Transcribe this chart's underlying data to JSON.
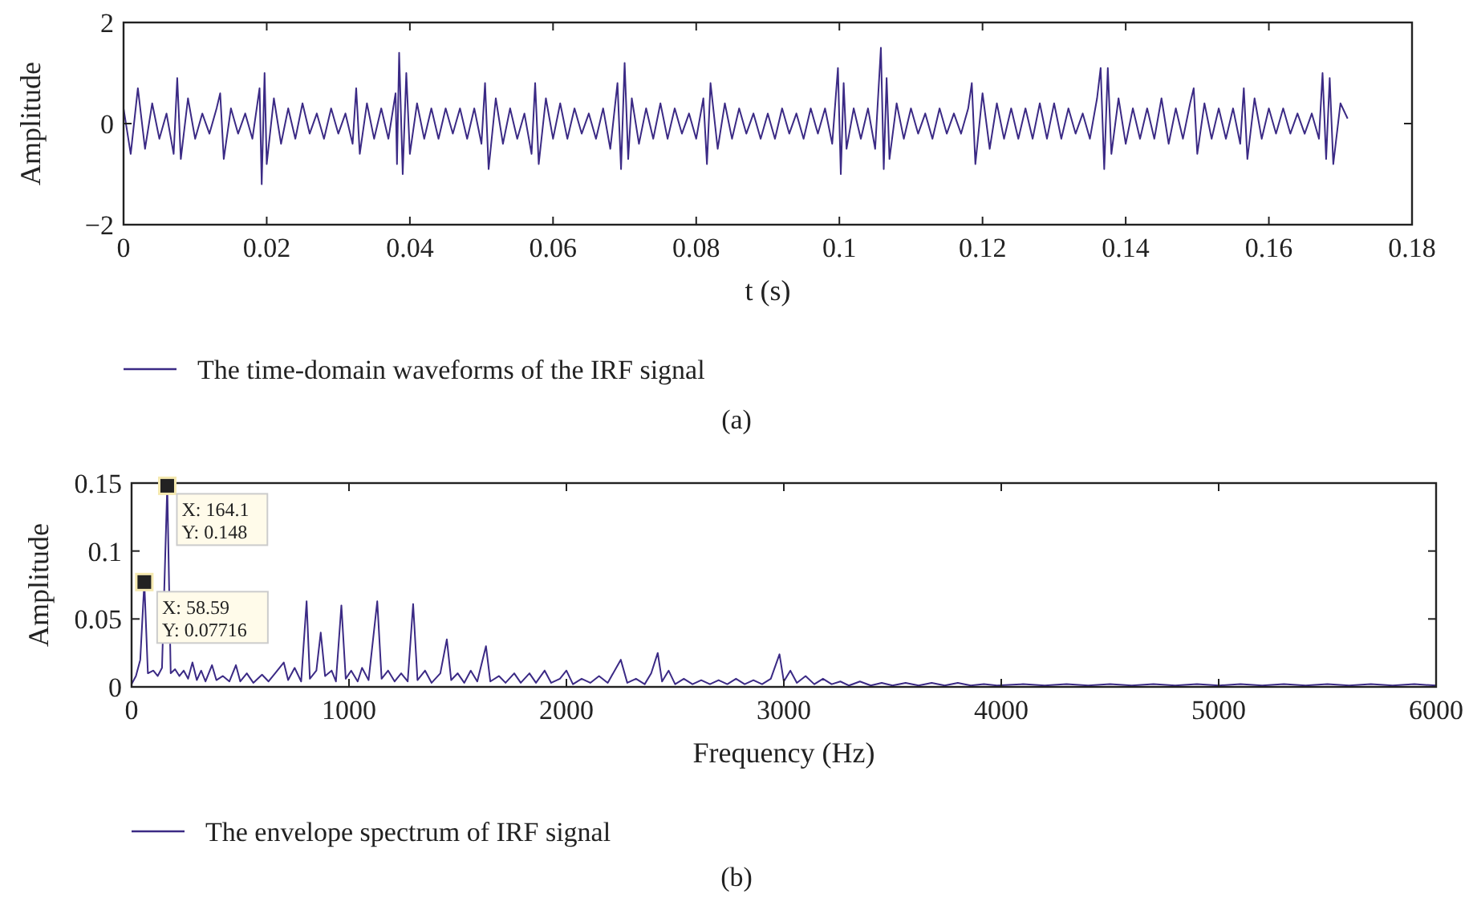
{
  "chart_data": [
    {
      "type": "line",
      "xlabel": "t (s)",
      "ylabel": "Amplitude",
      "xlim": [
        0,
        0.18
      ],
      "ylim": [
        -2,
        2
      ],
      "xticks": [
        0,
        0.02,
        0.04,
        0.06,
        0.08,
        0.1,
        0.12,
        0.14,
        0.16,
        0.18
      ],
      "yticks": [
        {
          "value": -2,
          "label": "−2"
        },
        0,
        2
      ],
      "grid": false,
      "legend": "bottom",
      "annotations": [
        "(a)"
      ],
      "series": [
        {
          "name": "The time-domain waveforms of the IRF signal",
          "color": "#3b2a85",
          "x": [
            0,
            0.001,
            0.002,
            0.003,
            0.004,
            0.005,
            0.006,
            0.007,
            0.0075,
            0.008,
            0.009,
            0.01,
            0.011,
            0.012,
            0.013,
            0.0135,
            0.014,
            0.015,
            0.016,
            0.017,
            0.018,
            0.019,
            0.0193,
            0.0197,
            0.02,
            0.021,
            0.022,
            0.023,
            0.024,
            0.025,
            0.026,
            0.027,
            0.028,
            0.029,
            0.03,
            0.031,
            0.032,
            0.0325,
            0.033,
            0.034,
            0.035,
            0.036,
            0.037,
            0.038,
            0.0382,
            0.0385,
            0.039,
            0.0395,
            0.04,
            0.041,
            0.042,
            0.043,
            0.044,
            0.045,
            0.046,
            0.047,
            0.048,
            0.049,
            0.05,
            0.0505,
            0.051,
            0.052,
            0.053,
            0.054,
            0.055,
            0.056,
            0.057,
            0.0575,
            0.058,
            0.059,
            0.06,
            0.061,
            0.062,
            0.063,
            0.064,
            0.065,
            0.066,
            0.067,
            0.068,
            0.069,
            0.0695,
            0.07,
            0.0705,
            0.071,
            0.072,
            0.073,
            0.074,
            0.075,
            0.076,
            0.077,
            0.078,
            0.079,
            0.08,
            0.081,
            0.0815,
            0.082,
            0.083,
            0.084,
            0.085,
            0.086,
            0.087,
            0.088,
            0.089,
            0.09,
            0.091,
            0.092,
            0.093,
            0.094,
            0.095,
            0.096,
            0.097,
            0.098,
            0.099,
            0.0998,
            0.1002,
            0.1006,
            0.101,
            0.102,
            0.103,
            0.104,
            0.105,
            0.1058,
            0.1062,
            0.1066,
            0.107,
            0.108,
            0.109,
            0.11,
            0.111,
            0.112,
            0.113,
            0.114,
            0.115,
            0.116,
            0.117,
            0.118,
            0.1185,
            0.119,
            0.12,
            0.121,
            0.122,
            0.123,
            0.124,
            0.125,
            0.126,
            0.127,
            0.128,
            0.129,
            0.13,
            0.131,
            0.132,
            0.133,
            0.134,
            0.135,
            0.136,
            0.1365,
            0.137,
            0.1375,
            0.138,
            0.139,
            0.14,
            0.141,
            0.142,
            0.143,
            0.144,
            0.145,
            0.146,
            0.147,
            0.148,
            0.149,
            0.1495,
            0.15,
            0.151,
            0.152,
            0.153,
            0.154,
            0.155,
            0.156,
            0.1565,
            0.157,
            0.158,
            0.159,
            0.16,
            0.161,
            0.162,
            0.163,
            0.164,
            0.165,
            0.166,
            0.167,
            0.1675,
            0.168,
            0.1685,
            0.169,
            0.17,
            0.171
          ],
          "values": [
            0.3,
            -0.6,
            0.7,
            -0.5,
            0.4,
            -0.3,
            0.2,
            -0.6,
            0.9,
            -0.7,
            0.5,
            -0.3,
            0.2,
            -0.2,
            0.3,
            0.6,
            -0.7,
            0.3,
            -0.2,
            0.2,
            -0.3,
            0.7,
            -1.2,
            1.0,
            -0.8,
            0.5,
            -0.4,
            0.3,
            -0.3,
            0.4,
            -0.2,
            0.2,
            -0.3,
            0.3,
            -0.2,
            0.2,
            -0.4,
            0.7,
            -0.6,
            0.4,
            -0.3,
            0.3,
            -0.3,
            0.6,
            -0.8,
            1.4,
            -1.0,
            1.0,
            -0.6,
            0.4,
            -0.3,
            0.3,
            -0.3,
            0.3,
            -0.2,
            0.3,
            -0.3,
            0.3,
            -0.4,
            0.8,
            -0.9,
            0.5,
            -0.4,
            0.3,
            -0.3,
            0.2,
            -0.6,
            0.8,
            -0.8,
            0.5,
            -0.3,
            0.4,
            -0.3,
            0.3,
            -0.2,
            0.2,
            -0.3,
            0.3,
            -0.5,
            0.8,
            -0.9,
            1.2,
            -0.7,
            0.5,
            -0.4,
            0.3,
            -0.3,
            0.4,
            -0.3,
            0.3,
            -0.2,
            0.2,
            -0.3,
            0.5,
            -0.8,
            0.8,
            -0.5,
            0.4,
            -0.3,
            0.3,
            -0.2,
            0.2,
            -0.3,
            0.2,
            -0.3,
            0.3,
            -0.2,
            0.2,
            -0.3,
            0.3,
            -0.2,
            0.3,
            -0.4,
            1.1,
            -1.0,
            0.8,
            -0.5,
            0.3,
            -0.3,
            0.3,
            -0.5,
            1.5,
            -0.9,
            0.9,
            -0.7,
            0.4,
            -0.3,
            0.3,
            -0.2,
            0.2,
            -0.3,
            0.3,
            -0.2,
            0.2,
            -0.2,
            0.3,
            0.8,
            -0.8,
            0.6,
            -0.5,
            0.4,
            -0.3,
            0.3,
            -0.3,
            0.3,
            -0.3,
            0.4,
            -0.3,
            0.4,
            -0.3,
            0.3,
            -0.2,
            0.2,
            -0.3,
            0.5,
            1.1,
            -0.9,
            1.1,
            -0.6,
            0.5,
            -0.4,
            0.3,
            -0.3,
            0.3,
            -0.3,
            0.5,
            -0.4,
            0.3,
            -0.3,
            0.4,
            0.7,
            -0.6,
            0.4,
            -0.3,
            0.3,
            -0.3,
            0.3,
            -0.4,
            0.7,
            -0.7,
            0.5,
            -0.3,
            0.3,
            -0.2,
            0.3,
            -0.2,
            0.2,
            -0.2,
            0.2,
            -0.3,
            1.0,
            -0.7,
            0.9,
            -0.8,
            0.4,
            0.1
          ]
        }
      ]
    },
    {
      "type": "line",
      "xlabel": "Frequency (Hz)",
      "ylabel": "Amplitude",
      "xlim": [
        0,
        6000
      ],
      "ylim": [
        0,
        0.15
      ],
      "xticks": [
        0,
        1000,
        2000,
        3000,
        4000,
        5000,
        6000
      ],
      "yticks": [
        0,
        0.05,
        0.1,
        0.15
      ],
      "grid": false,
      "legend": "bottom",
      "annotations": [
        {
          "text": "X: 164.1\nY: 0.148",
          "x": 164.1,
          "y": 0.148
        },
        {
          "text": "X: 58.59\nY: 0.07716",
          "x": 58.59,
          "y": 0.07716
        },
        "(b)"
      ],
      "series": [
        {
          "name": "The envelope spectrum of IRF signal",
          "color": "#3b2a85",
          "x": [
            0,
            20,
            40,
            58.59,
            75,
            100,
            120,
            140,
            164.1,
            180,
            200,
            220,
            240,
            260,
            280,
            300,
            320,
            340,
            370,
            390,
            420,
            450,
            480,
            500,
            530,
            560,
            600,
            630,
            660,
            700,
            720,
            750,
            780,
            805,
            820,
            850,
            870,
            890,
            920,
            940,
            965,
            985,
            1010,
            1040,
            1060,
            1090,
            1130,
            1150,
            1180,
            1210,
            1240,
            1270,
            1295,
            1315,
            1350,
            1380,
            1420,
            1450,
            1470,
            1500,
            1530,
            1560,
            1590,
            1630,
            1650,
            1690,
            1720,
            1760,
            1790,
            1830,
            1860,
            1900,
            1930,
            1970,
            2000,
            2030,
            2070,
            2110,
            2150,
            2190,
            2250,
            2280,
            2320,
            2360,
            2390,
            2420,
            2440,
            2470,
            2500,
            2540,
            2580,
            2620,
            2660,
            2700,
            2740,
            2780,
            2820,
            2860,
            2900,
            2940,
            2980,
            3000,
            3030,
            3060,
            3100,
            3140,
            3180,
            3220,
            3260,
            3300,
            3350,
            3400,
            3450,
            3500,
            3560,
            3620,
            3680,
            3740,
            3800,
            3860,
            3920,
            3980,
            4100,
            4200,
            4300,
            4400,
            4500,
            4600,
            4700,
            4800,
            4900,
            5000,
            5100,
            5200,
            5300,
            5400,
            5500,
            5600,
            5700,
            5800,
            5900,
            6000
          ],
          "values": [
            0.002,
            0.008,
            0.02,
            0.07716,
            0.01,
            0.012,
            0.008,
            0.014,
            0.148,
            0.01,
            0.013,
            0.008,
            0.012,
            0.006,
            0.018,
            0.005,
            0.012,
            0.004,
            0.016,
            0.005,
            0.008,
            0.004,
            0.016,
            0.004,
            0.01,
            0.003,
            0.009,
            0.004,
            0.01,
            0.018,
            0.005,
            0.014,
            0.004,
            0.063,
            0.006,
            0.012,
            0.04,
            0.008,
            0.012,
            0.004,
            0.06,
            0.006,
            0.012,
            0.004,
            0.014,
            0.005,
            0.063,
            0.006,
            0.012,
            0.004,
            0.01,
            0.004,
            0.061,
            0.005,
            0.012,
            0.003,
            0.01,
            0.035,
            0.005,
            0.01,
            0.003,
            0.012,
            0.004,
            0.03,
            0.004,
            0.008,
            0.003,
            0.01,
            0.003,
            0.01,
            0.003,
            0.012,
            0.003,
            0.006,
            0.012,
            0.002,
            0.006,
            0.003,
            0.008,
            0.003,
            0.02,
            0.003,
            0.006,
            0.002,
            0.01,
            0.025,
            0.004,
            0.012,
            0.002,
            0.006,
            0.002,
            0.005,
            0.002,
            0.005,
            0.002,
            0.006,
            0.002,
            0.005,
            0.002,
            0.006,
            0.024,
            0.004,
            0.012,
            0.003,
            0.008,
            0.002,
            0.006,
            0.002,
            0.004,
            0.001,
            0.004,
            0.001,
            0.003,
            0.001,
            0.003,
            0.001,
            0.003,
            0.001,
            0.003,
            0.001,
            0.002,
            0.001,
            0.002,
            0.001,
            0.002,
            0.001,
            0.002,
            0.001,
            0.002,
            0.001,
            0.002,
            0.001,
            0.002,
            0.001,
            0.002,
            0.001,
            0.002,
            0.001,
            0.002,
            0.001,
            0.002,
            0.001
          ]
        }
      ]
    }
  ]
}
